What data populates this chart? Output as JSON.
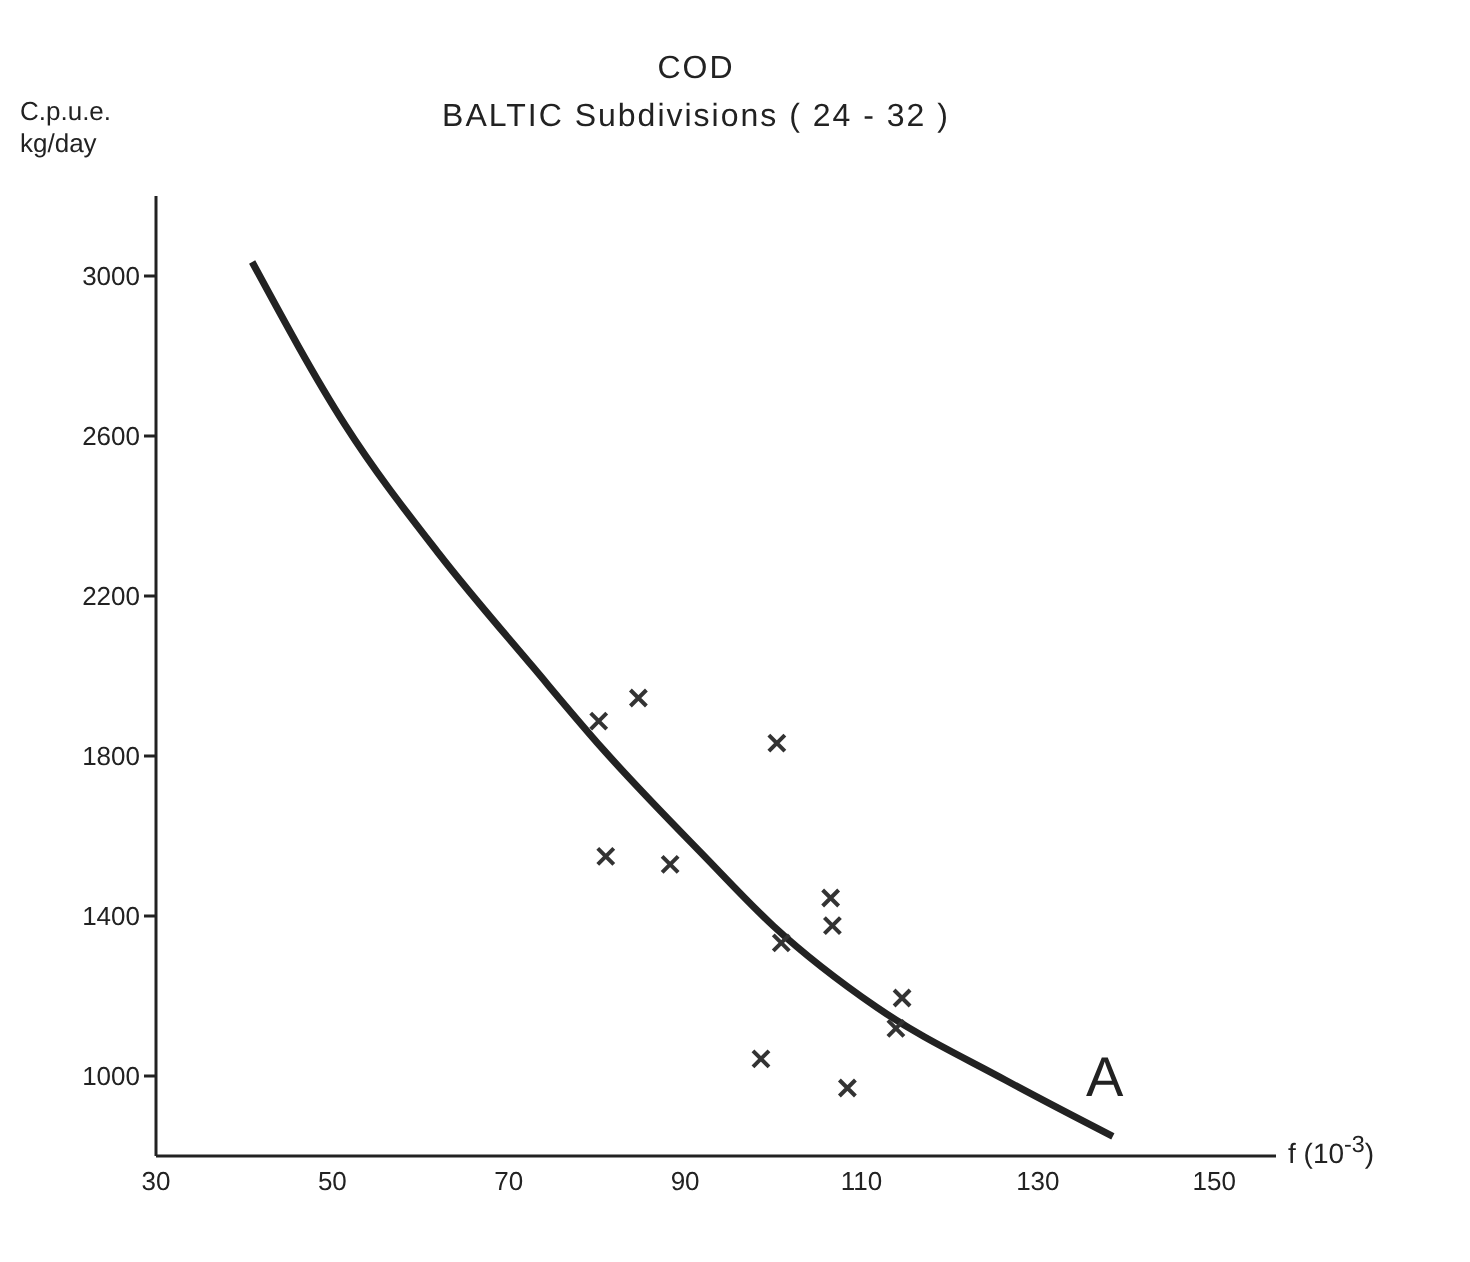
{
  "chart_data": {
    "type": "scatter",
    "title": "COD",
    "subtitle": "BALTIC  Subdivisions ( 24 - 32 )",
    "ylabel": "C.p.u.e.\nkg/day",
    "xlabel": "f (10$^{-3}$)",
    "xlim": [
      30,
      157
    ],
    "xticks": [
      30,
      50,
      70,
      90,
      110,
      130,
      150
    ],
    "ylim": [
      800,
      3200
    ],
    "yticks": [
      1000,
      1400,
      1800,
      2200,
      2600,
      3000
    ],
    "grid": false,
    "marker": "cross",
    "series": [
      {
        "color": "#333333",
        "x": [
          80.2,
          84.7,
          100.4,
          81.0,
          88.3,
          106.5,
          106.7,
          100.9,
          114.6,
          113.9,
          98.6,
          108.4
        ],
        "values": [
          1887,
          1945,
          1832,
          1549,
          1529,
          1445,
          1376,
          1333,
          1195,
          1119,
          1043,
          970
        ]
      },
      {
        "type": "line",
        "color": "#222222",
        "marker": "none",
        "x": [
          40.9,
          51.4,
          62.1,
          72.8,
          80.6,
          92.2,
          100.0,
          111.7,
          126.3,
          138.5
        ],
        "values": [
          3035,
          2629,
          2305,
          2021,
          1819,
          1549,
          1375,
          1172,
          990,
          849
        ]
      }
    ],
    "annotations": [
      "A"
    ]
  }
}
